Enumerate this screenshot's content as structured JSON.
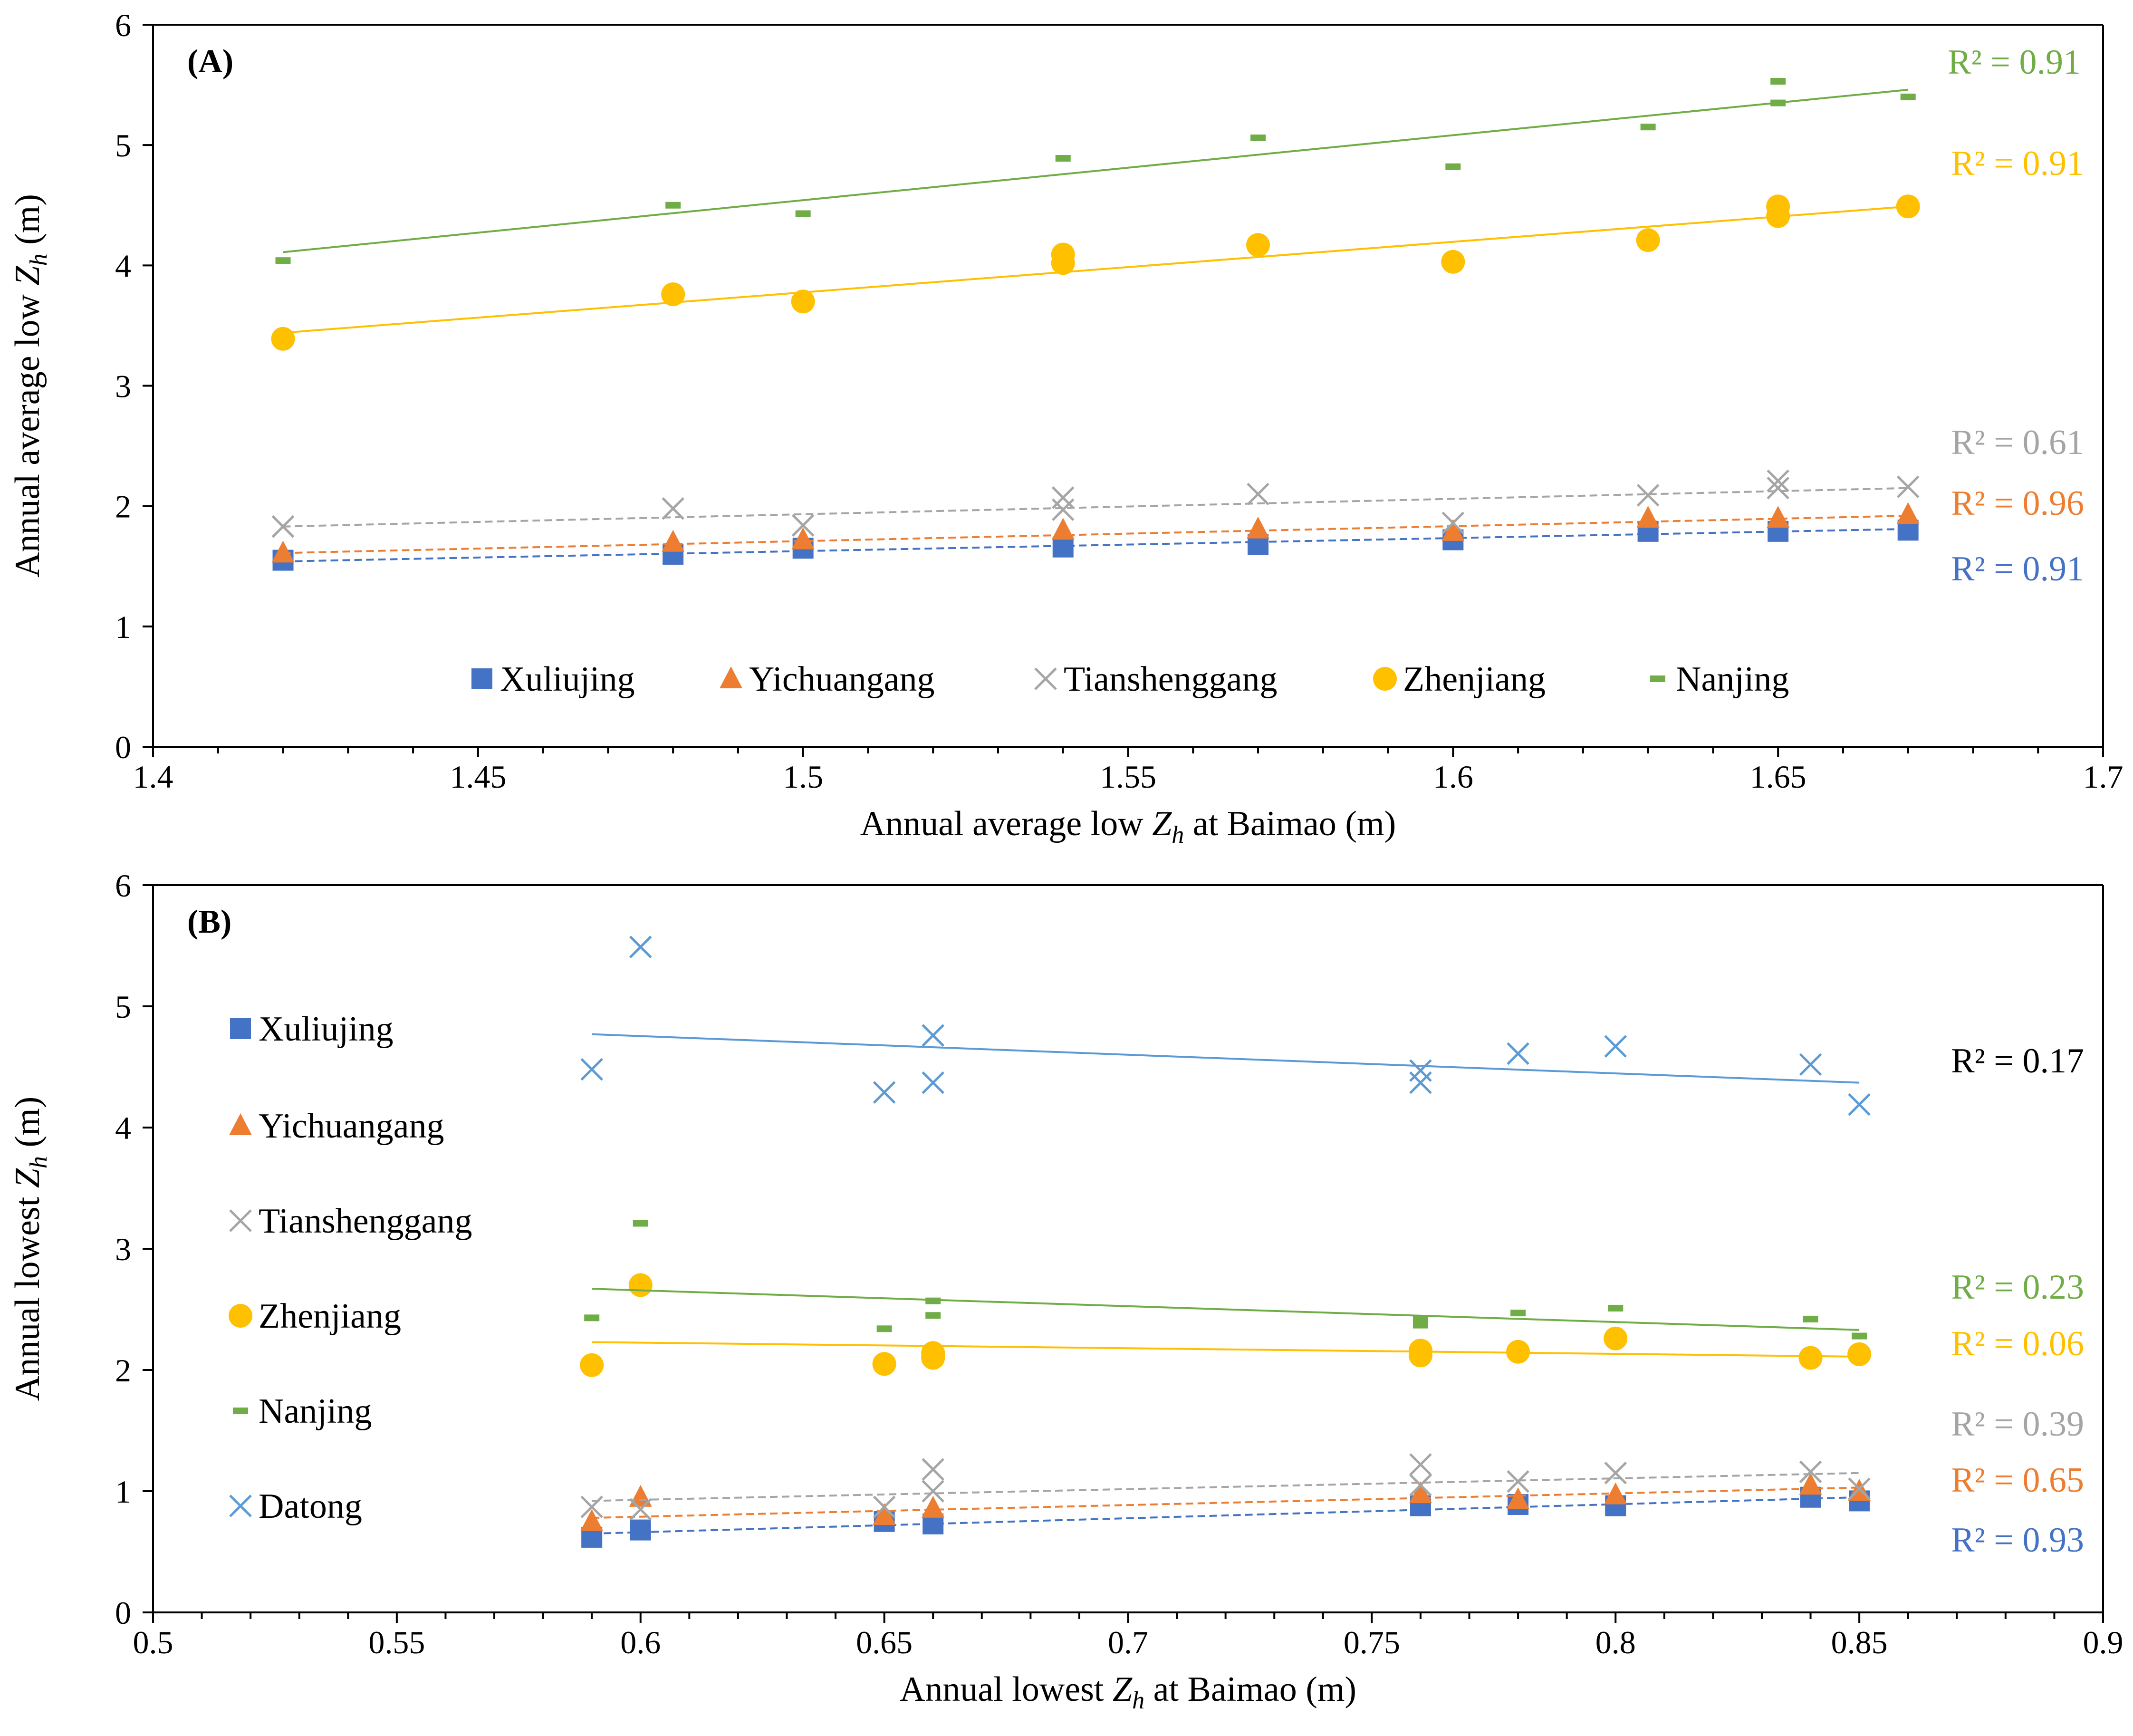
{
  "figure": {
    "colors": {
      "Xuliujing": "#4472C4",
      "Yichuangang": "#ED7D31",
      "Tianshenggang": "#A5A5A5",
      "Zhenjiang": "#FFC000",
      "Nanjing": "#70AD47",
      "Datong": "#5B9BD5"
    }
  },
  "chart_data": [
    {
      "type": "scatter",
      "panel_label": "(A)",
      "title": "",
      "xlabel_pre": "Annual average low ",
      "xlabel_var": "Z",
      "xlabel_sub": "h",
      "xlabel_post": " at Baimao (m)",
      "ylabel_pre": "Annual average low ",
      "ylabel_var": "Z",
      "ylabel_sub": "h",
      "ylabel_post": " (m)",
      "xlim": [
        1.4,
        1.7
      ],
      "ylim": [
        0,
        6
      ],
      "xticks": [
        1.4,
        1.45,
        1.5,
        1.55,
        1.6,
        1.65,
        1.7
      ],
      "xtick_labels": [
        "1.4",
        "1.45",
        "1.5",
        "1.55",
        "1.6",
        "1.65",
        "1.7"
      ],
      "yticks": [
        0,
        1,
        2,
        3,
        4,
        5,
        6
      ],
      "ytick_labels": [
        "0",
        "1",
        "2",
        "3",
        "4",
        "5",
        "6"
      ],
      "legend_position": "inside-bottom-horizontal",
      "series": [
        {
          "name": "Xuliujing",
          "marker": "square",
          "trend": "dashed",
          "x": [
            1.42,
            1.48,
            1.5,
            1.54,
            1.57,
            1.6,
            1.63,
            1.65,
            1.67
          ],
          "y": [
            1.55,
            1.6,
            1.65,
            1.66,
            1.68,
            1.72,
            1.79,
            1.79,
            1.8
          ],
          "trend_from": [
            1.42,
            1.54
          ],
          "trend_to": [
            1.67,
            1.81
          ],
          "r2": "R² = 0.91"
        },
        {
          "name": "Yichuangang",
          "marker": "triangle",
          "trend": "dashed",
          "x": [
            1.42,
            1.48,
            1.5,
            1.54,
            1.57,
            1.6,
            1.63,
            1.65,
            1.67
          ],
          "y": [
            1.61,
            1.7,
            1.72,
            1.8,
            1.81,
            1.79,
            1.9,
            1.9,
            1.93
          ],
          "trend_from": [
            1.42,
            1.61
          ],
          "trend_to": [
            1.67,
            1.92
          ],
          "r2": "R² = 0.96"
        },
        {
          "name": "Tianshenggang",
          "marker": "x",
          "trend": "dashed",
          "x": [
            1.42,
            1.48,
            1.5,
            1.54,
            1.54,
            1.57,
            1.6,
            1.63,
            1.65,
            1.65,
            1.67
          ],
          "y": [
            1.83,
            1.98,
            1.84,
            2.07,
            1.97,
            2.1,
            1.86,
            2.09,
            2.21,
            2.15,
            2.16
          ],
          "trend_from": [
            1.42,
            1.83
          ],
          "trend_to": [
            1.67,
            2.15
          ],
          "r2": "R² = 0.61"
        },
        {
          "name": "Zhenjiang",
          "marker": "circle",
          "trend": "solid",
          "x": [
            1.42,
            1.48,
            1.5,
            1.54,
            1.54,
            1.57,
            1.6,
            1.63,
            1.65,
            1.65,
            1.67
          ],
          "y": [
            3.39,
            3.76,
            3.7,
            4.09,
            4.02,
            4.17,
            4.03,
            4.21,
            4.49,
            4.41,
            4.49
          ],
          "trend_from": [
            1.42,
            3.44
          ],
          "trend_to": [
            1.67,
            4.49
          ],
          "r2": "R² = 0.91"
        },
        {
          "name": "Nanjing",
          "marker": "dash",
          "trend": "solid",
          "x": [
            1.42,
            1.48,
            1.5,
            1.54,
            1.57,
            1.6,
            1.63,
            1.65,
            1.65,
            1.67
          ],
          "y": [
            4.04,
            4.5,
            4.43,
            4.89,
            5.06,
            4.82,
            5.15,
            5.53,
            5.35,
            5.4
          ],
          "trend_from": [
            1.42,
            4.11
          ],
          "trend_to": [
            1.67,
            5.46
          ],
          "r2": "R² = 0.91"
        }
      ]
    },
    {
      "type": "scatter",
      "panel_label": "(B)",
      "title": "",
      "xlabel_pre": "Annual lowest ",
      "xlabel_var": "Z",
      "xlabel_sub": "h",
      "xlabel_post": " at Baimao (m)",
      "ylabel_pre": "Annual lowest ",
      "ylabel_var": "Z",
      "ylabel_sub": "h",
      "ylabel_post": " (m)",
      "xlim": [
        0.5,
        0.9
      ],
      "ylim": [
        0,
        6
      ],
      "xticks": [
        0.5,
        0.55,
        0.6,
        0.65,
        0.7,
        0.75,
        0.8,
        0.85,
        0.9
      ],
      "xtick_labels": [
        "0.5",
        "0.55",
        "0.6",
        "0.65",
        "0.7",
        "0.75",
        "0.8",
        "0.85",
        "0.9"
      ],
      "yticks": [
        0,
        1,
        2,
        3,
        4,
        5,
        6
      ],
      "ytick_labels": [
        "0",
        "1",
        "2",
        "3",
        "4",
        "5",
        "6"
      ],
      "legend_position": "inside-left-vertical",
      "series": [
        {
          "name": "Xuliujing",
          "marker": "square",
          "trend": "dashed",
          "x": [
            0.59,
            0.6,
            0.65,
            0.66,
            0.76,
            0.78,
            0.8,
            0.84,
            0.85
          ],
          "y": [
            0.62,
            0.68,
            0.75,
            0.73,
            0.88,
            0.89,
            0.88,
            0.95,
            0.92
          ],
          "trend_from": [
            0.59,
            0.65
          ],
          "trend_to": [
            0.85,
            0.95
          ],
          "r2": "R² = 0.93"
        },
        {
          "name": "Yichuangang",
          "marker": "triangle",
          "trend": "dashed",
          "x": [
            0.59,
            0.6,
            0.65,
            0.66,
            0.76,
            0.78,
            0.8,
            0.84,
            0.85
          ],
          "y": [
            0.75,
            0.95,
            0.8,
            0.86,
            0.98,
            0.93,
            0.97,
            1.05,
            1.0
          ],
          "trend_from": [
            0.59,
            0.78
          ],
          "trend_to": [
            0.85,
            1.03
          ],
          "r2": "R² = 0.65"
        },
        {
          "name": "Tianshenggang",
          "marker": "x",
          "trend": "dashed",
          "x": [
            0.59,
            0.6,
            0.65,
            0.66,
            0.66,
            0.76,
            0.76,
            0.78,
            0.8,
            0.84,
            0.85
          ],
          "y": [
            0.87,
            0.85,
            0.87,
            1.18,
            1.0,
            1.22,
            1.05,
            1.08,
            1.15,
            1.16,
            1.02
          ],
          "trend_from": [
            0.59,
            0.92
          ],
          "trend_to": [
            0.85,
            1.15
          ],
          "r2": "R² = 0.39"
        },
        {
          "name": "Zhenjiang",
          "marker": "circle",
          "trend": "solid",
          "x": [
            0.59,
            0.6,
            0.65,
            0.66,
            0.66,
            0.76,
            0.76,
            0.78,
            0.8,
            0.84,
            0.85
          ],
          "y": [
            2.04,
            2.7,
            2.05,
            2.14,
            2.1,
            2.16,
            2.12,
            2.15,
            2.26,
            2.1,
            2.13
          ],
          "trend_from": [
            0.59,
            2.23
          ],
          "trend_to": [
            0.85,
            2.11
          ],
          "r2": "R² = 0.06"
        },
        {
          "name": "Nanjing",
          "marker": "dash",
          "trend": "solid",
          "x": [
            0.59,
            0.6,
            0.65,
            0.66,
            0.66,
            0.76,
            0.76,
            0.78,
            0.8,
            0.84,
            0.85
          ],
          "y": [
            2.43,
            3.21,
            2.34,
            2.57,
            2.45,
            2.42,
            2.37,
            2.47,
            2.51,
            2.42,
            2.28
          ],
          "trend_from": [
            0.59,
            2.67
          ],
          "trend_to": [
            0.85,
            2.33
          ],
          "r2": "R² = 0.23"
        },
        {
          "name": "Datong",
          "marker": "x",
          "trend": "solid",
          "x": [
            0.59,
            0.6,
            0.65,
            0.66,
            0.66,
            0.76,
            0.76,
            0.78,
            0.8,
            0.84,
            0.85
          ],
          "y": [
            4.48,
            5.49,
            4.29,
            4.76,
            4.37,
            4.47,
            4.37,
            4.61,
            4.67,
            4.52,
            4.19
          ],
          "trend_from": [
            0.59,
            4.77
          ],
          "trend_to": [
            0.85,
            4.37
          ],
          "r2": "R² = 0.17"
        }
      ]
    }
  ]
}
